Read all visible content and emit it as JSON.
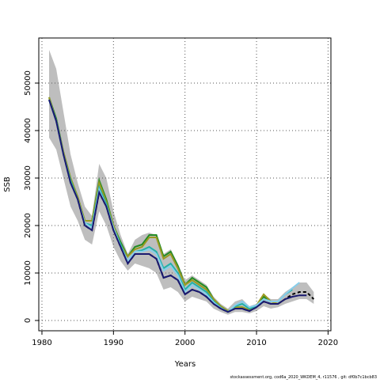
{
  "chart_data": {
    "type": "line",
    "xlabel": "Years",
    "ylabel": "SSB",
    "note": "stockassessment.org, cod6a_2020_WKDEM_4, r11576 , git: df0b7c1bcb83",
    "x": [
      1981,
      1982,
      1983,
      1984,
      1985,
      1986,
      1987,
      1988,
      1989,
      1990,
      1991,
      1992,
      1993,
      1994,
      1995,
      1996,
      1997,
      1998,
      1999,
      2000,
      2001,
      2002,
      2003,
      2004,
      2005,
      2006,
      2007,
      2008,
      2009,
      2010,
      2011,
      2012,
      2013,
      2014,
      2015,
      2016,
      2017,
      2018
    ],
    "band": {
      "color": "#bebebe",
      "upper": [
        57000,
        53000,
        44000,
        35000,
        29000,
        24000,
        22000,
        33000,
        30000,
        23000,
        18000,
        14000,
        17000,
        18000,
        18500,
        18000,
        14000,
        15000,
        12000,
        8500,
        9500,
        8500,
        7500,
        5000,
        3500,
        2500,
        4000,
        4500,
        3000,
        3500,
        5500,
        4500,
        4500,
        6000,
        7000,
        8000,
        8000,
        6000
      ],
      "lower": [
        38500,
        36000,
        30000,
        24000,
        21000,
        17000,
        16000,
        23000,
        20000,
        15500,
        12500,
        10500,
        12000,
        11500,
        11000,
        10000,
        6500,
        7000,
        6000,
        4000,
        5000,
        4500,
        4000,
        2500,
        1800,
        1200,
        1800,
        1800,
        1500,
        2000,
        3000,
        2500,
        2800,
        3500,
        4000,
        4500,
        4500,
        3500
      ]
    },
    "series": [
      {
        "color": "#000000",
        "dashed": true,
        "values": [
          46500,
          42000,
          35000,
          29000,
          25500,
          20000,
          19000,
          27000,
          24000,
          19000,
          15500,
          12000,
          14000,
          14000,
          14000,
          13000,
          9000,
          9500,
          8500,
          5500,
          6500,
          6000,
          5000,
          3500,
          2500,
          1800,
          2500,
          2500,
          2000,
          2800,
          4000,
          3500,
          3500,
          4500,
          5500,
          6000,
          6000,
          4500
        ]
      },
      {
        "color": "#228b22",
        "values": [
          47000,
          42500,
          35500,
          30000,
          26000,
          21000,
          21000,
          29500,
          25500,
          20000,
          16500,
          13500,
          15500,
          16000,
          18000,
          18000,
          13500,
          14500,
          11500,
          7500,
          9000,
          8000,
          7000,
          4500,
          3000,
          2000,
          2800,
          2800,
          2200,
          3200,
          5000,
          4000,
          4000,
          null,
          null,
          null,
          null,
          null
        ]
      },
      {
        "color": "#9a9a20",
        "values": [
          47000,
          42000,
          35500,
          30000,
          26000,
          21000,
          21000,
          29000,
          25000,
          20000,
          16000,
          13500,
          15000,
          15500,
          17500,
          17500,
          13000,
          14000,
          11000,
          7500,
          8500,
          7500,
          6500,
          4500,
          3000,
          2000,
          2800,
          2800,
          2200,
          3200,
          5500,
          4000,
          3500,
          4500,
          null,
          null,
          null,
          null
        ]
      },
      {
        "color": "#20b2aa",
        "values": [
          46500,
          42000,
          35000,
          29500,
          25500,
          20500,
          20000,
          28000,
          24500,
          19500,
          16000,
          12500,
          14500,
          14800,
          15500,
          14500,
          11000,
          12000,
          10000,
          6500,
          8000,
          7000,
          6000,
          4000,
          2700,
          1800,
          3000,
          3500,
          2500,
          3000,
          4500,
          4000,
          4000,
          5500,
          6500,
          null,
          null,
          null
        ]
      },
      {
        "color": "#87ceeb",
        "values": [
          46500,
          42000,
          35000,
          29000,
          25500,
          20500,
          19500,
          27500,
          24000,
          19500,
          15500,
          12500,
          14500,
          14500,
          15000,
          14000,
          10500,
          11500,
          9500,
          6000,
          7500,
          6500,
          5500,
          3800,
          2600,
          1800,
          3200,
          4000,
          2800,
          3200,
          4500,
          4000,
          4000,
          5500,
          6800,
          8000,
          null,
          null
        ]
      },
      {
        "color": "#191970",
        "values": [
          46500,
          42000,
          35000,
          29000,
          25500,
          20000,
          19000,
          27000,
          24000,
          19000,
          15500,
          12000,
          14000,
          14000,
          14000,
          13000,
          9000,
          9500,
          8500,
          5500,
          6500,
          6000,
          5000,
          3500,
          2500,
          1800,
          2500,
          2500,
          2000,
          2800,
          4000,
          3500,
          3500,
          4500,
          5000,
          5300,
          5300,
          null
        ]
      }
    ],
    "xlim": [
      1979.56,
      2020.4
    ],
    "ylim": [
      -2167,
      59500
    ],
    "xticks": [
      1980,
      1990,
      2000,
      2010,
      2020
    ],
    "yticks": [
      0,
      10000,
      20000,
      30000,
      40000,
      50000
    ],
    "grid": true
  }
}
